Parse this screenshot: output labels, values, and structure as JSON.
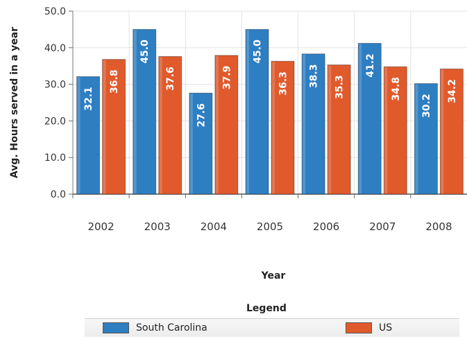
{
  "chart_data": {
    "type": "bar",
    "categories": [
      "2002",
      "2003",
      "2004",
      "2005",
      "2006",
      "2007",
      "2008"
    ],
    "series": [
      {
        "name": "South Carolina",
        "color": "#2e7ec2",
        "values": [
          32.1,
          45.0,
          27.6,
          45.0,
          38.3,
          41.2,
          30.2
        ]
      },
      {
        "name": "US",
        "color": "#e05a2c",
        "values": [
          36.8,
          37.6,
          37.9,
          36.3,
          35.3,
          34.8,
          34.2
        ]
      }
    ],
    "data_labels": {
      "South Carolina": [
        "32.1",
        "45.0",
        "27.6",
        "45.0",
        "38.3",
        "41.2",
        "30.2"
      ],
      "US": [
        "36.8",
        "37.6",
        "37.9",
        "36.3",
        "35.3",
        "34.8",
        "34.2"
      ]
    },
    "xlabel": "Year",
    "ylabel": "Avg. Hours served in a year",
    "ylim": [
      0,
      50
    ],
    "yticks": [
      "0.0",
      "10.0",
      "20.0",
      "30.0",
      "40.0",
      "50.0"
    ],
    "grid": true,
    "legend_title": "Legend",
    "legend_position": "bottom"
  }
}
